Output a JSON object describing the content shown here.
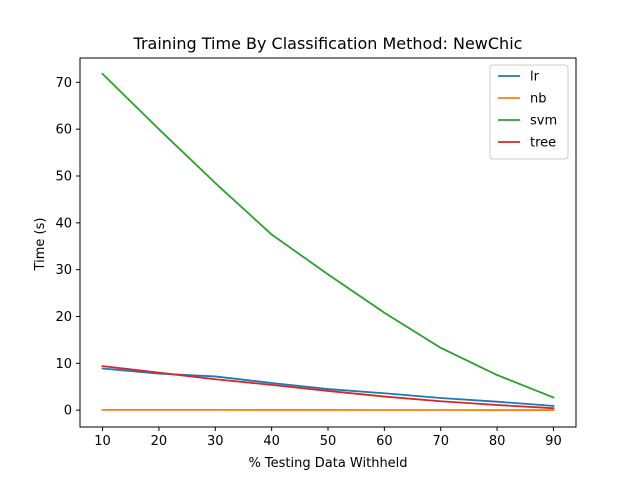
{
  "chart_data": {
    "type": "line",
    "title": "Training Time By Classification Method: NewChic",
    "xlabel": "% Testing Data Withheld",
    "ylabel": "Time (s)",
    "x": [
      10,
      20,
      30,
      40,
      50,
      60,
      70,
      80,
      90
    ],
    "xlim": [
      6,
      94
    ],
    "ylim": [
      -3.6,
      75.2
    ],
    "xticks": [
      10,
      20,
      30,
      40,
      50,
      60,
      70,
      80,
      90
    ],
    "yticks": [
      0,
      10,
      20,
      30,
      40,
      50,
      60,
      70
    ],
    "grid": false,
    "legend_position": "top-right",
    "series": [
      {
        "name": "lr",
        "color": "#1f77b4",
        "values": [
          8.9,
          7.8,
          7.2,
          5.8,
          4.5,
          3.6,
          2.6,
          1.8,
          0.9
        ]
      },
      {
        "name": "nb",
        "color": "#ff7f0e",
        "values": [
          0.05,
          0.05,
          0.05,
          0.04,
          0.04,
          0.03,
          0.03,
          0.02,
          0.02
        ]
      },
      {
        "name": "svm",
        "color": "#2ca02c",
        "values": [
          71.8,
          60.0,
          48.5,
          37.5,
          29.0,
          20.8,
          13.3,
          7.5,
          2.7
        ]
      },
      {
        "name": "tree",
        "color": "#d62728",
        "values": [
          9.4,
          8.0,
          6.6,
          5.4,
          4.1,
          2.9,
          1.9,
          1.1,
          0.4
        ]
      }
    ]
  }
}
